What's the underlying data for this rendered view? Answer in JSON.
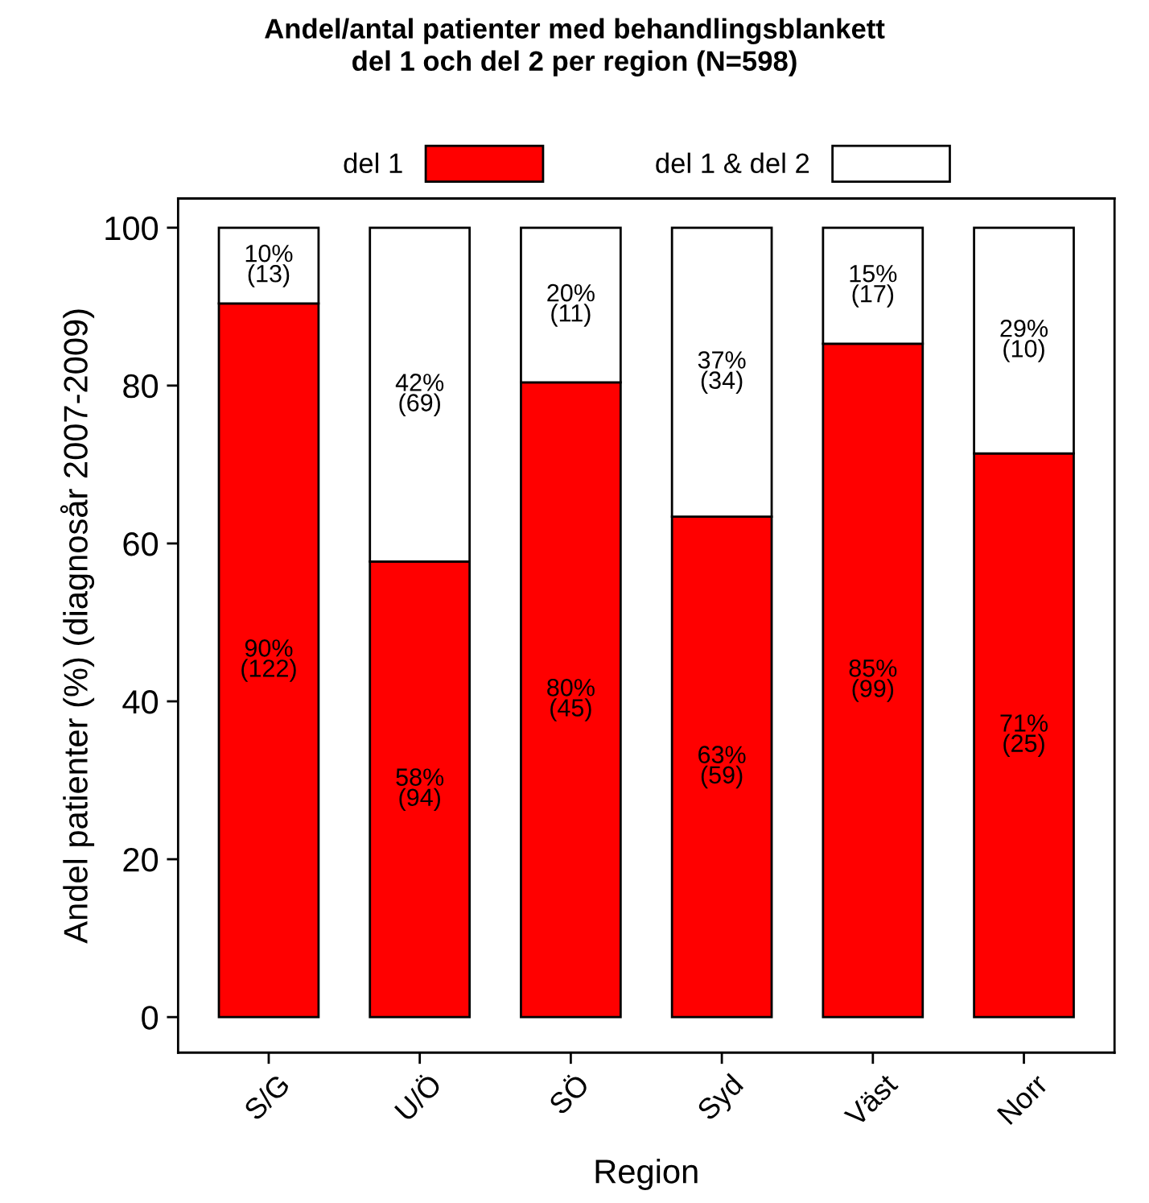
{
  "chart_data": {
    "type": "bar",
    "stacked": true,
    "title": "Andel/antal patienter med behandlingsblankett\ndel 1 och del 2 per region (N=598)",
    "xlabel": "Region",
    "ylabel": "Andel patienter (%) (diagnosår 2007-2009)",
    "categories": [
      "S/G",
      "U/Ö",
      "SÖ",
      "Syd",
      "Väst",
      "Norr"
    ],
    "series": [
      {
        "name": "del 1",
        "color": "#ff0000",
        "values": [
          90.4,
          57.7,
          80.4,
          63.4,
          85.3,
          71.4
        ],
        "value_labels": [
          "90%\n(122)",
          "58%\n(94)",
          "80%\n(45)",
          "63%\n(59)",
          "85%\n(99)",
          "71%\n(25)"
        ]
      },
      {
        "name": "del 1 & del 2",
        "color": "#ffffff",
        "values": [
          9.6,
          42.3,
          19.6,
          36.6,
          14.7,
          28.6
        ],
        "value_labels": [
          "10%\n(13)",
          "42%\n(69)",
          "20%\n(11)",
          "37%\n(34)",
          "15%\n(17)",
          "29%\n(10)"
        ]
      }
    ],
    "ylim": [
      -4.5,
      103.7
    ],
    "yticks": [
      0,
      20,
      40,
      60,
      80,
      100
    ],
    "grid": false,
    "legend": "top"
  }
}
